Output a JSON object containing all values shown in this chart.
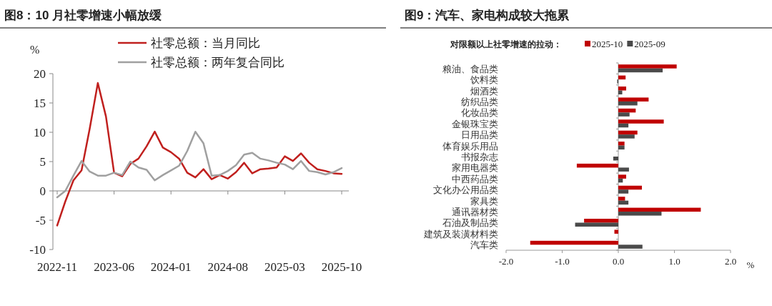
{
  "chart_data": [
    {
      "type": "line",
      "title": "图8：10 月社零增速小幅放缓",
      "ylabel": "%",
      "legend": "top",
      "x": [
        "2022-11",
        "2022-12",
        "2023-01",
        "2023-02",
        "2023-03",
        "2023-04",
        "2023-05",
        "2023-06",
        "2023-07",
        "2023-08",
        "2023-09",
        "2023-10",
        "2023-11",
        "2023-12",
        "2024-01",
        "2024-02",
        "2024-03",
        "2024-04",
        "2024-05",
        "2024-06",
        "2024-07",
        "2024-08",
        "2024-09",
        "2024-10",
        "2024-11",
        "2024-12",
        "2025-01",
        "2025-02",
        "2025-03",
        "2025-04",
        "2025-05",
        "2025-06",
        "2025-07",
        "2025-08",
        "2025-09",
        "2025-10"
      ],
      "xlim": [
        "2022-11",
        "2025-10"
      ],
      "xticks": [
        "2022-11",
        "2023-06",
        "2024-01",
        "2024-08",
        "2025-03",
        "2025-10"
      ],
      "ylim": [
        -10,
        20
      ],
      "yticks": [
        -10,
        -5,
        0,
        5,
        10,
        15,
        20
      ],
      "series": [
        {
          "name": "社零总额：当月同比",
          "color": "#c0201e",
          "values": [
            -5.9,
            -1.8,
            1.8,
            3.5,
            10.6,
            18.4,
            12.7,
            3.1,
            2.5,
            4.6,
            5.5,
            7.6,
            10.1,
            7.4,
            6.6,
            5.5,
            3.1,
            2.3,
            3.7,
            2.0,
            2.7,
            2.1,
            3.2,
            4.8,
            3.0,
            3.7,
            3.8,
            4.0,
            5.9,
            5.1,
            6.4,
            4.8,
            3.7,
            3.4,
            3.0,
            2.9
          ]
        },
        {
          "name": "社零总额：两年复合同比",
          "color": "#a0a0a0",
          "values": [
            -1.1,
            0.0,
            2.6,
            5.1,
            3.3,
            2.6,
            2.6,
            3.1,
            2.7,
            5.0,
            4.0,
            3.6,
            1.8,
            2.7,
            3.5,
            4.3,
            6.8,
            10.1,
            8.1,
            2.6,
            2.7,
            3.4,
            4.4,
            6.2,
            6.5,
            5.5,
            5.2,
            4.8,
            4.5,
            3.7,
            5.1,
            3.4,
            3.2,
            2.8,
            3.2,
            3.9
          ]
        }
      ]
    },
    {
      "type": "bar",
      "orientation": "horizontal",
      "title": "图9：汽车、家电构成较大拖累",
      "legend_title": "对限额以上社零增速的拉动：",
      "legend": "top",
      "xlabel": "%",
      "categories": [
        "粮油、食品类",
        "饮料类",
        "烟酒类",
        "纺织品类",
        "化妆品类",
        "金银珠宝类",
        "日用品类",
        "体育娱乐用品",
        "书报杂志",
        "家用电器类",
        "中西药品类",
        "文化办公用品类",
        "家具类",
        "通讯器材类",
        "石油及制品类",
        "建筑及装潢材料类",
        "汽车类"
      ],
      "xlim": [
        -2,
        2
      ],
      "xticks": [
        {
          "value": -2,
          "label": "-2.0"
        },
        {
          "value": -1,
          "label": "-1.0"
        },
        {
          "value": 0,
          "label": "0.0"
        },
        {
          "value": 1,
          "label": "1.0"
        },
        {
          "value": 2,
          "label": "2.0"
        }
      ],
      "series": [
        {
          "name": "2025-10",
          "color": "#c00000",
          "values": [
            1.04,
            0.13,
            0.14,
            0.54,
            0.31,
            0.81,
            0.34,
            0.11,
            0,
            -0.74,
            0.14,
            0.42,
            0.12,
            1.47,
            -0.61,
            -0.07,
            -1.57
          ]
        },
        {
          "name": "2025-09",
          "color": "#4a4a4a",
          "values": [
            0.79,
            -0.02,
            0.07,
            0.34,
            0.2,
            0.18,
            0.29,
            0.11,
            -0.09,
            0.19,
            0.08,
            0.18,
            0.18,
            0.77,
            -0.77,
            0.0,
            0.43
          ]
        }
      ]
    }
  ]
}
